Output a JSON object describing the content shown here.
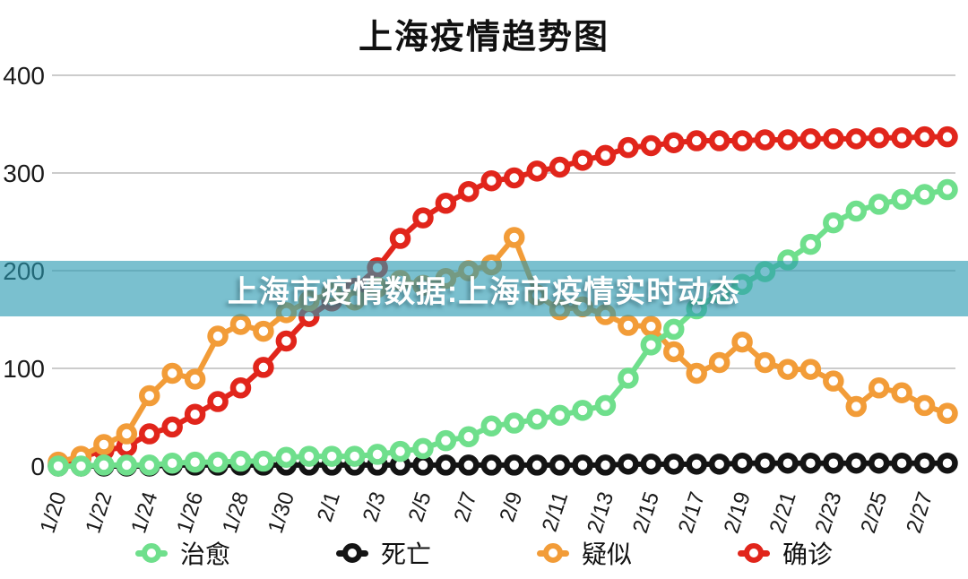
{
  "title": "上海疫情趋势图",
  "watermark": {
    "text": "上海市疫情数据:上海市疫情实时动态"
  },
  "colors": {
    "cured": "#6FDF8C",
    "death": "#141414",
    "suspected": "#F29C38",
    "confirmed": "#E1251B",
    "gridline": "#CCCCCC",
    "axis_label": "#1A1A1A",
    "watermark_band": "rgba(41,153,177,0.62)",
    "watermark_text": "#FFFFFF",
    "background": "#FFFFFF"
  },
  "legend": {
    "items": [
      {
        "id": "cured",
        "label": "治愈"
      },
      {
        "id": "death",
        "label": "死亡"
      },
      {
        "id": "suspected",
        "label": "疑似"
      },
      {
        "id": "confirmed",
        "label": "确诊"
      }
    ]
  },
  "chart_data": {
    "type": "line",
    "title": "上海疫情趋势图",
    "xlabel": "",
    "ylabel": "",
    "ylim": [
      0,
      400
    ],
    "y_ticks": [
      0,
      100,
      200,
      300,
      400
    ],
    "grid": true,
    "legend_position": "bottom",
    "x_label_every": 2,
    "x": [
      "1/20",
      "1/21",
      "1/22",
      "1/23",
      "1/24",
      "1/25",
      "1/26",
      "1/27",
      "1/28",
      "1/29",
      "1/30",
      "1/31",
      "2/1",
      "2/2",
      "2/3",
      "2/4",
      "2/5",
      "2/6",
      "2/7",
      "2/8",
      "2/9",
      "2/10",
      "2/11",
      "2/12",
      "2/13",
      "2/14",
      "2/15",
      "2/16",
      "2/17",
      "2/18",
      "2/19",
      "2/20",
      "2/21",
      "2/22",
      "2/23",
      "2/24",
      "2/25",
      "2/26",
      "2/27",
      "2/28"
    ],
    "series": [
      {
        "id": "cured",
        "name": "治愈",
        "color": "#6FDF8C",
        "values": [
          0,
          0,
          1,
          1,
          1,
          3,
          4,
          4,
          5,
          5,
          9,
          10,
          10,
          10,
          12,
          15,
          18,
          26,
          30,
          41,
          44,
          48,
          52,
          57,
          62,
          90,
          124,
          140,
          161,
          177,
          186,
          199,
          211,
          227,
          249,
          261,
          268,
          273,
          278,
          283
        ]
      },
      {
        "id": "death",
        "name": "死亡",
        "color": "#141414",
        "values": [
          0,
          0,
          0,
          0,
          0,
          1,
          1,
          1,
          1,
          1,
          1,
          1,
          1,
          1,
          1,
          1,
          1,
          1,
          1,
          1,
          1,
          1,
          1,
          1,
          1,
          2,
          2,
          2,
          2,
          2,
          3,
          3,
          3,
          3,
          3,
          3,
          3,
          3,
          3,
          3
        ]
      },
      {
        "id": "suspected",
        "name": "疑似",
        "color": "#F29C38",
        "values": [
          4,
          10,
          22,
          33,
          72,
          95,
          89,
          133,
          145,
          138,
          157,
          169,
          177,
          170,
          183,
          190,
          185,
          192,
          200,
          206,
          234,
          175,
          160,
          163,
          155,
          144,
          143,
          117,
          95,
          106,
          127,
          106,
          99,
          99,
          87,
          61,
          80,
          75,
          62,
          54
        ]
      },
      {
        "id": "confirmed",
        "name": "确诊",
        "color": "#E1251B",
        "values": [
          2,
          9,
          16,
          20,
          33,
          40,
          53,
          66,
          80,
          101,
          128,
          153,
          169,
          182,
          203,
          233,
          254,
          269,
          281,
          292,
          295,
          302,
          306,
          313,
          318,
          326,
          328,
          331,
          333,
          333,
          333,
          334,
          334,
          335,
          335,
          335,
          336,
          336,
          337,
          337
        ]
      }
    ]
  }
}
